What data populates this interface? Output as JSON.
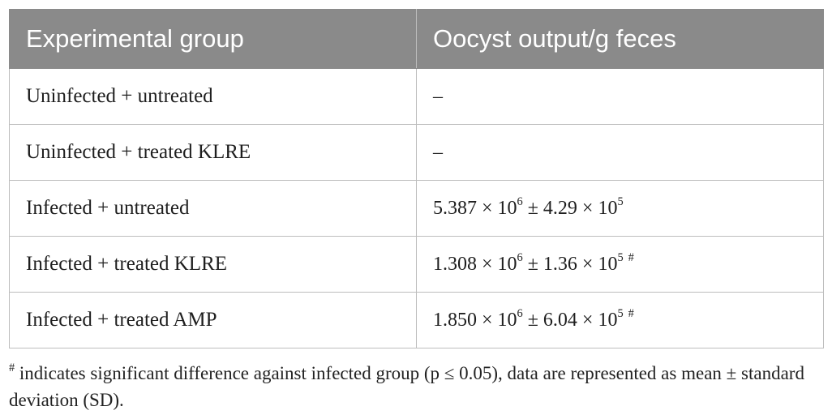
{
  "table": {
    "headers": [
      "Experimental group",
      "Oocyst output/g feces"
    ],
    "rows": [
      {
        "group": "Uninfected + untreated",
        "value": "–"
      },
      {
        "group": "Uninfected + treated KLRE",
        "value": "–"
      },
      {
        "group": "Infected + untreated",
        "mean_mantissa": "5.387",
        "mean_exp": "6",
        "sd_mantissa": "4.29",
        "sd_exp": "5",
        "mark": ""
      },
      {
        "group": "Infected + treated KLRE",
        "mean_mantissa": "1.308",
        "mean_exp": "6",
        "sd_mantissa": "1.36",
        "sd_exp": "5",
        "mark": "#"
      },
      {
        "group": "Infected + treated AMP",
        "mean_mantissa": "1.850",
        "mean_exp": "6",
        "sd_mantissa": "6.04",
        "sd_exp": "5",
        "mark": "#"
      }
    ],
    "times_symbol": "×",
    "base": "10",
    "pm_symbol": "±"
  },
  "footnote": {
    "mark": "#",
    "text": " indicates significant difference against infected group (p ≤ 0.05), data are represented as mean ± standard deviation (SD)."
  }
}
